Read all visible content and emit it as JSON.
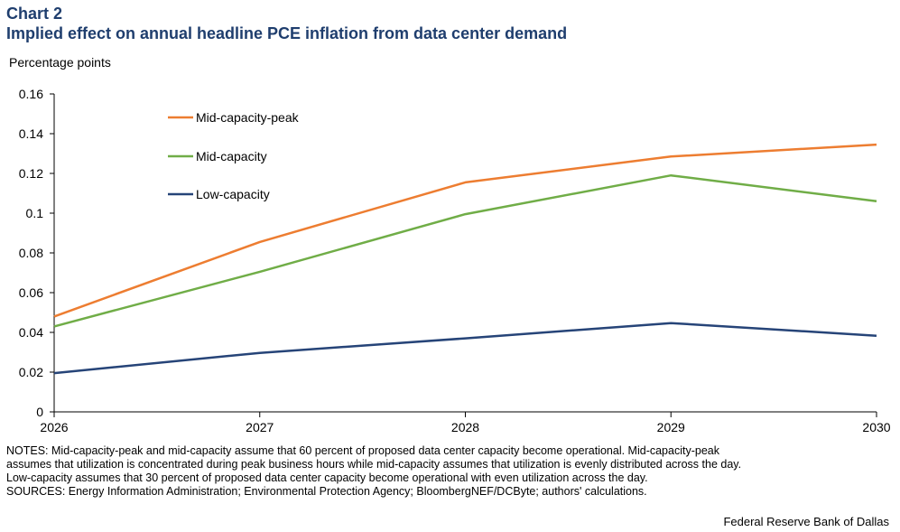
{
  "header": {
    "chart_number": "Chart 2",
    "title": "Implied effect on annual headline PCE inflation from data center demand"
  },
  "notes": {
    "line1": "NOTES: Mid-capacity-peak and mid-capacity assume that 60 percent of proposed data center capacity become operational. Mid-capacity-peak",
    "line2": "assumes that utilization is concentrated during peak business hours while mid-capacity assumes that utilization is evenly distributed across the day.",
    "line3": "Low-capacity assumes that 30 percent of proposed data center capacity become operational with even utilization across the day.",
    "line4": "SOURCES: Energy Information Administration; Environmental Protection Agency; BloombergNEF/DCByte; authors' calculations."
  },
  "credit": "Federal Reserve Bank of Dallas",
  "chart_data": {
    "type": "line",
    "title": "Implied effect on annual headline PCE inflation from data center demand",
    "xlabel": "",
    "ylabel": "Percentage points",
    "x": [
      "2026",
      "2027",
      "2028",
      "2029",
      "2030"
    ],
    "yticks": [
      "0",
      "0.02",
      "0.04",
      "0.06",
      "0.08",
      "0.1",
      "0.12",
      "0.14",
      "0.16"
    ],
    "ylim": [
      0,
      0.16
    ],
    "grid": false,
    "legend_position": "top-left",
    "series": [
      {
        "name": "Mid-capacity-peak",
        "color": "#ed7d31",
        "values": [
          0.048,
          0.0855,
          0.1155,
          0.1285,
          0.1345
        ]
      },
      {
        "name": "Mid-capacity",
        "color": "#70ad47",
        "values": [
          0.043,
          0.0705,
          0.0995,
          0.119,
          0.106
        ]
      },
      {
        "name": "Low-capacity",
        "color": "#264478",
        "values": [
          0.0195,
          0.0297,
          0.037,
          0.0447,
          0.0383
        ]
      }
    ]
  }
}
